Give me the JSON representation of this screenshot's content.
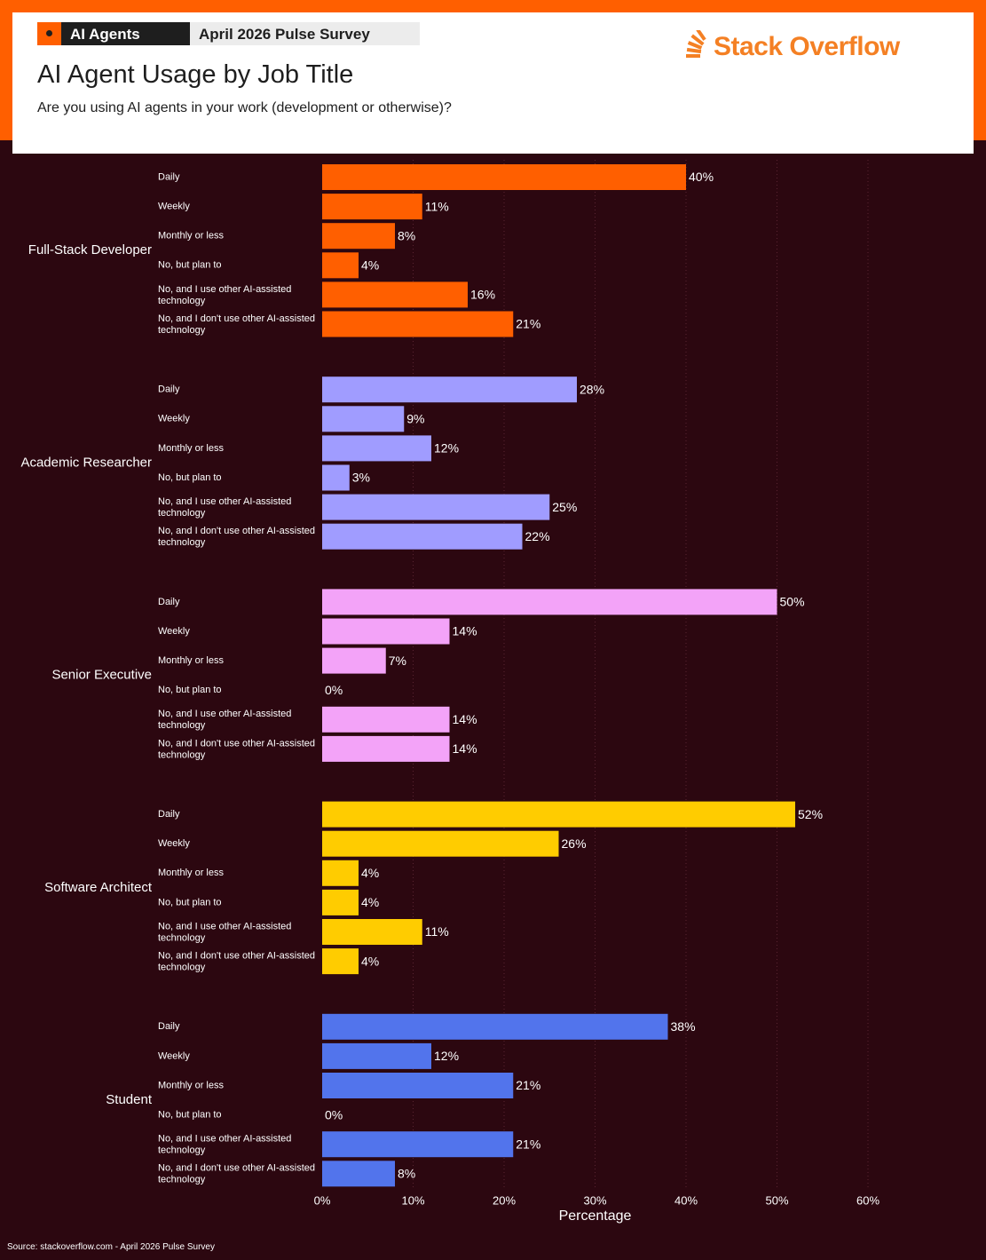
{
  "header": {
    "tag_primary": "AI Agents",
    "tag_secondary": "April 2026 Pulse Survey",
    "title": "AI Agent Usage by Job Title",
    "subtitle": "Are you using AI agents in your work (development or otherwise)?",
    "logo_text": "Stack Overflow",
    "logo_icon": "stack-overflow-logo-icon",
    "logo_color": "#f48024"
  },
  "colors": {
    "background": "#2c0710",
    "header_band": "#ff5f00"
  },
  "footer": {
    "source": "Source: stackoverflow.com - April 2026 Pulse Survey"
  },
  "chart_data": {
    "type": "bar",
    "orientation": "horizontal",
    "categories": [
      "Daily",
      "Weekly",
      "Monthly or less",
      "No, but plan to",
      "No, and I use other AI-assisted technology",
      "No, and I don't use other AI-assisted technology"
    ],
    "series": [
      {
        "name": "Full-Stack Developer",
        "color": "#ff5f00",
        "values": [
          40,
          11,
          8,
          4,
          16,
          21
        ]
      },
      {
        "name": "Academic Researcher",
        "color": "#a09cff",
        "values": [
          28,
          9,
          12,
          3,
          25,
          22
        ]
      },
      {
        "name": "Senior Executive",
        "color": "#f3a3f8",
        "values": [
          50,
          14,
          7,
          0,
          14,
          14
        ]
      },
      {
        "name": "Software Architect",
        "color": "#ffcc00",
        "values": [
          52,
          26,
          4,
          4,
          11,
          4
        ]
      },
      {
        "name": "Student",
        "color": "#5274ec",
        "values": [
          38,
          12,
          21,
          0,
          21,
          8
        ]
      }
    ],
    "value_suffix": "%",
    "xlabel": "Percentage",
    "xlim": [
      0,
      60
    ],
    "xticks": [
      "0%",
      "10%",
      "20%",
      "30%",
      "40%",
      "50%",
      "60%"
    ],
    "grid": "vertical dotted",
    "legend": "none"
  }
}
